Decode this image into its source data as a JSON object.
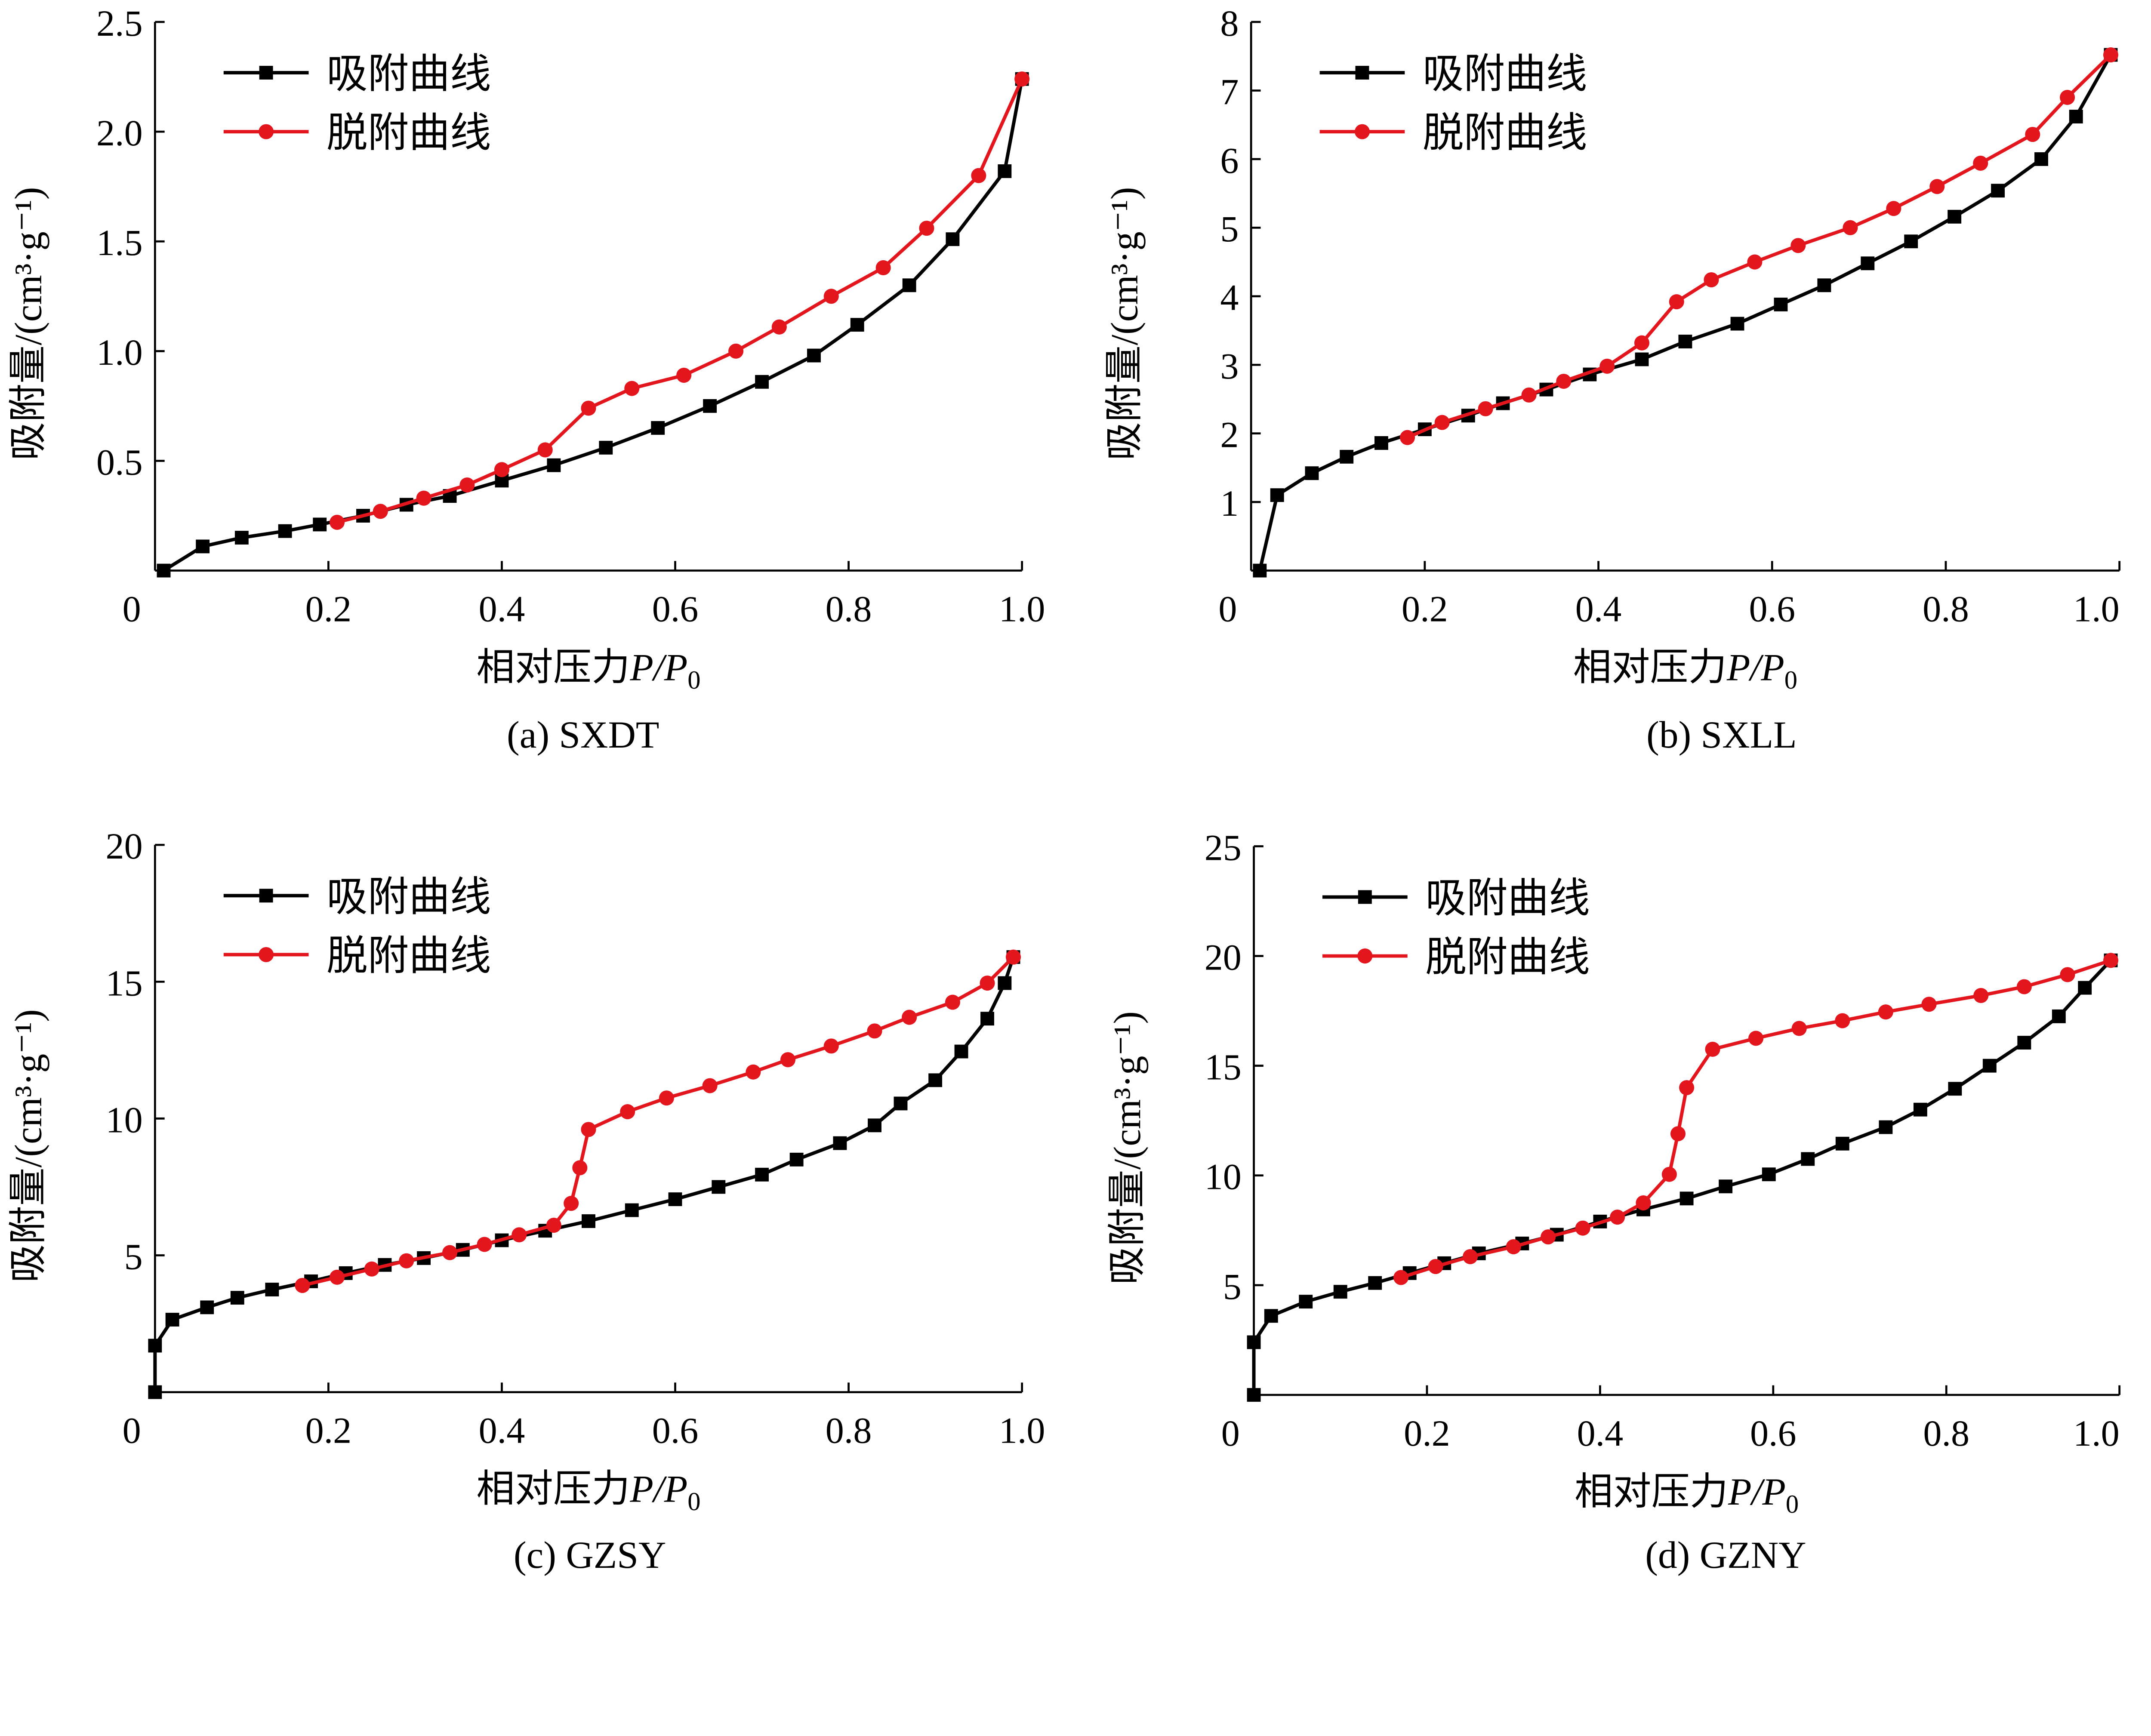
{
  "colors": {
    "adsorption": "#000000",
    "desorption": "#e3151d"
  },
  "chart_data": [
    {
      "type": "line",
      "caption": "(a)  SXDT",
      "ylabel": "吸附量/(cm³·g⁻¹)",
      "xlabel_prefix": "相对压力",
      "xlabel_var": "P/P",
      "xlabel_sub": "0",
      "xlim": [
        0,
        1.0
      ],
      "ylim": [
        0,
        2.5
      ],
      "xticks": [
        "0",
        "0.2",
        "0.4",
        "0.6",
        "0.8",
        "1.0"
      ],
      "yticks": [
        "0.5",
        "1.0",
        "1.5",
        "2.0",
        "2.5"
      ],
      "legend": "top-left",
      "series": [
        {
          "name": "吸附曲线",
          "marker": "square",
          "x": [
            0.01,
            0.055,
            0.1,
            0.15,
            0.19,
            0.24,
            0.29,
            0.34,
            0.4,
            0.46,
            0.52,
            0.58,
            0.64,
            0.7,
            0.76,
            0.81,
            0.87,
            0.92,
            0.98,
            1.0
          ],
          "y": [
            0,
            0.11,
            0.15,
            0.18,
            0.21,
            0.25,
            0.3,
            0.34,
            0.41,
            0.48,
            0.56,
            0.65,
            0.75,
            0.86,
            0.98,
            1.12,
            1.3,
            1.51,
            1.82,
            2.24
          ]
        },
        {
          "name": "脱附曲线",
          "marker": "circle",
          "x": [
            0.21,
            0.26,
            0.31,
            0.36,
            0.4,
            0.45,
            0.5,
            0.55,
            0.61,
            0.67,
            0.72,
            0.78,
            0.84,
            0.89,
            0.95,
            1.0
          ],
          "y": [
            0.22,
            0.27,
            0.33,
            0.39,
            0.46,
            0.55,
            0.74,
            0.83,
            0.89,
            1.0,
            1.11,
            1.25,
            1.38,
            1.56,
            1.8,
            2.24
          ]
        }
      ]
    },
    {
      "type": "line",
      "caption": "(b)  SXLL",
      "ylabel": "吸附量/(cm³·g⁻¹)",
      "xlabel_prefix": "相对压力",
      "xlabel_var": "P/P",
      "xlabel_sub": "0",
      "xlim": [
        0,
        1.0
      ],
      "ylim": [
        0,
        8
      ],
      "xticks": [
        "0",
        "0.2",
        "0.4",
        "0.6",
        "0.8",
        "1.0"
      ],
      "yticks": [
        "1",
        "2",
        "3",
        "4",
        "5",
        "6",
        "7",
        "8"
      ],
      "legend": "top-left",
      "series": [
        {
          "name": "吸附曲线",
          "marker": "square",
          "x": [
            0.01,
            0.03,
            0.07,
            0.11,
            0.15,
            0.2,
            0.25,
            0.29,
            0.34,
            0.39,
            0.45,
            0.5,
            0.56,
            0.61,
            0.66,
            0.71,
            0.76,
            0.81,
            0.86,
            0.91,
            0.95,
            0.99
          ],
          "y": [
            0,
            1.1,
            1.42,
            1.66,
            1.86,
            2.06,
            2.26,
            2.44,
            2.64,
            2.86,
            3.08,
            3.34,
            3.6,
            3.88,
            4.16,
            4.48,
            4.8,
            5.16,
            5.54,
            6.0,
            6.62,
            7.52
          ]
        },
        {
          "name": "脱附曲线",
          "marker": "circle",
          "x": [
            0.18,
            0.22,
            0.27,
            0.32,
            0.36,
            0.41,
            0.45,
            0.49,
            0.53,
            0.58,
            0.63,
            0.69,
            0.74,
            0.79,
            0.84,
            0.9,
            0.94,
            0.99
          ],
          "y": [
            1.94,
            2.16,
            2.36,
            2.56,
            2.76,
            2.98,
            3.32,
            3.92,
            4.24,
            4.5,
            4.74,
            5.0,
            5.28,
            5.6,
            5.94,
            6.36,
            6.9,
            7.52
          ]
        }
      ]
    },
    {
      "type": "line",
      "caption": "(c)  GZSY",
      "ylabel": "吸附量/(cm³·g⁻¹)",
      "xlabel_prefix": "相对压力",
      "xlabel_var": "P/P",
      "xlabel_sub": "0",
      "xlim": [
        0,
        1.0
      ],
      "ylim": [
        0,
        20
      ],
      "xticks": [
        "0",
        "0.2",
        "0.4",
        "0.6",
        "0.8",
        "1.0"
      ],
      "yticks": [
        "5",
        "10",
        "15",
        "20"
      ],
      "legend": "top-left",
      "series": [
        {
          "name": "吸附曲线",
          "marker": "square",
          "x": [
            0,
            0,
            0.02,
            0.06,
            0.095,
            0.135,
            0.18,
            0.22,
            0.265,
            0.31,
            0.355,
            0.4,
            0.45,
            0.5,
            0.55,
            0.6,
            0.65,
            0.7,
            0.74,
            0.79,
            0.83,
            0.86,
            0.9,
            0.93,
            0.96,
            0.98,
            0.99
          ],
          "y": [
            0,
            1.7,
            2.65,
            3.1,
            3.45,
            3.75,
            4.05,
            4.35,
            4.65,
            4.9,
            5.2,
            5.55,
            5.9,
            6.25,
            6.65,
            7.05,
            7.5,
            7.95,
            8.5,
            9.1,
            9.75,
            10.55,
            11.4,
            12.45,
            13.65,
            14.95,
            15.9
          ]
        },
        {
          "name": "脱附曲线",
          "marker": "circle",
          "x": [
            0.17,
            0.21,
            0.25,
            0.29,
            0.34,
            0.38,
            0.42,
            0.46,
            0.48,
            0.49,
            0.5,
            0.545,
            0.59,
            0.64,
            0.69,
            0.73,
            0.78,
            0.83,
            0.87,
            0.92,
            0.96,
            0.99
          ],
          "y": [
            3.9,
            4.2,
            4.5,
            4.8,
            5.1,
            5.4,
            5.75,
            6.1,
            6.9,
            8.2,
            9.6,
            10.25,
            10.75,
            11.2,
            11.7,
            12.15,
            12.65,
            13.2,
            13.7,
            14.25,
            14.95,
            15.9
          ]
        }
      ]
    },
    {
      "type": "line",
      "caption": "(d)  GZNY",
      "ylabel": "吸附量/(cm³·g⁻¹)",
      "xlabel_prefix": "相对压力",
      "xlabel_var": "P/P",
      "xlabel_sub": "0",
      "xlim": [
        0,
        1.0
      ],
      "ylim": [
        0,
        25
      ],
      "xticks": [
        "0",
        "0.2",
        "0.4",
        "0.6",
        "0.8",
        "1.0"
      ],
      "yticks": [
        "5",
        "10",
        "15",
        "20",
        "25"
      ],
      "legend": "top-left",
      "series": [
        {
          "name": "吸附曲线",
          "marker": "square",
          "x": [
            0,
            0,
            0.02,
            0.06,
            0.1,
            0.14,
            0.18,
            0.22,
            0.26,
            0.31,
            0.35,
            0.4,
            0.45,
            0.5,
            0.545,
            0.595,
            0.64,
            0.68,
            0.73,
            0.77,
            0.81,
            0.85,
            0.89,
            0.93,
            0.96,
            0.99
          ],
          "y": [
            0,
            2.4,
            3.6,
            4.25,
            4.7,
            5.1,
            5.55,
            6.0,
            6.45,
            6.9,
            7.3,
            7.9,
            8.45,
            8.95,
            9.5,
            10.05,
            10.75,
            11.45,
            12.2,
            13.0,
            13.95,
            15.0,
            16.05,
            17.25,
            18.55,
            19.8
          ]
        },
        {
          "name": "脱附曲线",
          "marker": "circle",
          "x": [
            0.17,
            0.21,
            0.25,
            0.3,
            0.34,
            0.38,
            0.42,
            0.45,
            0.48,
            0.49,
            0.5,
            0.53,
            0.58,
            0.63,
            0.68,
            0.73,
            0.78,
            0.84,
            0.89,
            0.94,
            0.99
          ],
          "y": [
            5.35,
            5.85,
            6.3,
            6.75,
            7.2,
            7.6,
            8.1,
            8.75,
            10.05,
            11.9,
            14.0,
            15.75,
            16.25,
            16.7,
            17.05,
            17.45,
            17.8,
            18.2,
            18.6,
            19.15,
            19.8
          ]
        }
      ]
    }
  ]
}
